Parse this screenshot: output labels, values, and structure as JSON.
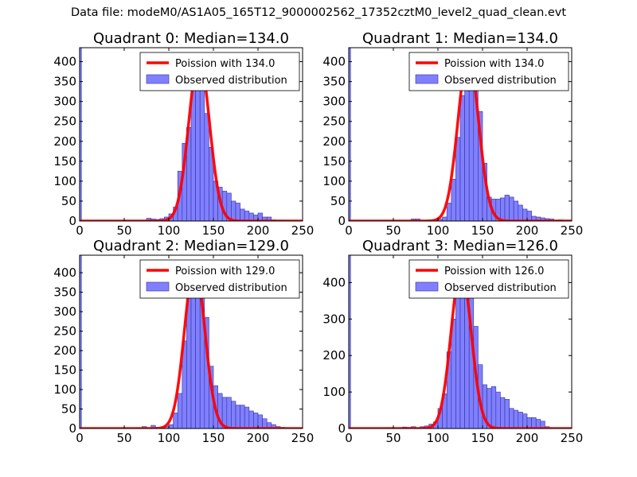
{
  "suptitle": "Data file: modeM0/AS1A05_165T12_9000002562_17352cztM0_level2_quad_clean.evt",
  "colors": {
    "bar_fill": "#8080ff",
    "bar_edge": "#3030a0",
    "poisson": "#ff0000",
    "axis": "#000000"
  },
  "chart_data": [
    {
      "type": "bar",
      "title": "Quadrant 0: Median=134.0",
      "xlim": [
        0,
        250
      ],
      "ylim": [
        0,
        435
      ],
      "xticks": [
        0,
        50,
        100,
        150,
        200,
        250
      ],
      "yticks": [
        0,
        50,
        100,
        150,
        200,
        250,
        300,
        350,
        400
      ],
      "bin_width": 5,
      "edge_bar": {
        "x": 0,
        "width": 2,
        "value": 435
      },
      "bins_start": [
        75,
        80,
        85,
        90,
        95,
        100,
        105,
        110,
        115,
        120,
        125,
        130,
        135,
        140,
        145,
        150,
        155,
        160,
        165,
        170,
        175,
        180,
        185,
        190,
        195,
        200,
        205,
        210,
        215,
        220,
        225,
        230
      ],
      "counts": [
        7,
        5,
        4,
        6,
        10,
        18,
        35,
        125,
        195,
        235,
        370,
        385,
        355,
        270,
        185,
        100,
        85,
        75,
        70,
        50,
        45,
        30,
        25,
        20,
        15,
        20,
        10,
        10,
        3,
        2,
        2,
        1
      ],
      "legend": {
        "position": "top-right",
        "line_label": "Poission with 134.0",
        "bar_label": "Observed distribution"
      },
      "poisson_mean": 134.0,
      "poisson_peak": 410
    },
    {
      "type": "bar",
      "title": "Quadrant 1: Median=134.0",
      "xlim": [
        0,
        250
      ],
      "ylim": [
        0,
        435
      ],
      "xticks": [
        0,
        50,
        100,
        150,
        200,
        250
      ],
      "yticks": [
        0,
        50,
        100,
        150,
        200,
        250,
        300,
        350,
        400
      ],
      "bin_width": 5,
      "edge_bar": {
        "x": 0,
        "width": 2,
        "value": 435
      },
      "bins_start": [
        70,
        75,
        80,
        85,
        90,
        95,
        100,
        105,
        110,
        115,
        120,
        125,
        130,
        135,
        140,
        145,
        150,
        155,
        160,
        165,
        170,
        175,
        180,
        185,
        190,
        195,
        200,
        205,
        210,
        215,
        220,
        225,
        230,
        235,
        240,
        245
      ],
      "counts": [
        5,
        5,
        2,
        2,
        2,
        3,
        5,
        10,
        45,
        105,
        210,
        315,
        400,
        405,
        355,
        275,
        145,
        60,
        55,
        55,
        58,
        65,
        60,
        50,
        40,
        30,
        25,
        12,
        10,
        8,
        6,
        5,
        2,
        3,
        1,
        1
      ],
      "legend": {
        "position": "top-right",
        "line_label": "Poission with 134.0",
        "bar_label": "Observed distribution"
      },
      "poisson_mean": 134.0,
      "poisson_peak": 415
    },
    {
      "type": "bar",
      "title": "Quadrant 2: Median=129.0",
      "xlim": [
        0,
        250
      ],
      "ylim": [
        0,
        445
      ],
      "xticks": [
        0,
        50,
        100,
        150,
        200,
        250
      ],
      "yticks": [
        0,
        50,
        100,
        150,
        200,
        250,
        300,
        350,
        400
      ],
      "bin_width": 5,
      "edge_bar": {
        "x": 0,
        "width": 2,
        "value": 445
      },
      "bins_start": [
        70,
        75,
        80,
        85,
        90,
        95,
        100,
        105,
        110,
        115,
        120,
        125,
        130,
        135,
        140,
        145,
        150,
        155,
        160,
        165,
        170,
        175,
        180,
        185,
        190,
        195,
        200,
        205,
        210,
        215,
        220,
        225,
        230
      ],
      "counts": [
        5,
        2,
        8,
        3,
        4,
        5,
        10,
        40,
        90,
        225,
        350,
        385,
        420,
        345,
        285,
        160,
        110,
        90,
        80,
        80,
        70,
        60,
        60,
        55,
        45,
        40,
        35,
        25,
        15,
        10,
        5,
        3,
        1
      ],
      "legend": {
        "position": "top-right",
        "line_label": "Poission with 129.0",
        "bar_label": "Observed distribution"
      },
      "poisson_mean": 129.0,
      "poisson_peak": 420
    },
    {
      "type": "bar",
      "title": "Quadrant 3: Median=126.0",
      "xlim": [
        0,
        250
      ],
      "ylim": [
        0,
        475
      ],
      "xticks": [
        0,
        50,
        100,
        150,
        200,
        250
      ],
      "yticks": [
        0,
        100,
        200,
        300,
        400
      ],
      "bin_width": 5,
      "edge_bar": {
        "x": 0,
        "width": 2,
        "value": 475
      },
      "bins_start": [
        60,
        65,
        70,
        75,
        80,
        85,
        90,
        95,
        100,
        105,
        110,
        115,
        120,
        125,
        130,
        135,
        140,
        145,
        150,
        155,
        160,
        165,
        170,
        175,
        180,
        185,
        190,
        195,
        200,
        205,
        210,
        215,
        220
      ],
      "counts": [
        4,
        3,
        5,
        2,
        5,
        7,
        12,
        18,
        55,
        95,
        210,
        300,
        390,
        440,
        430,
        375,
        280,
        175,
        120,
        110,
        115,
        100,
        85,
        80,
        55,
        50,
        45,
        40,
        30,
        30,
        25,
        20,
        5
      ],
      "legend": {
        "position": "top-right",
        "line_label": "Poission with 126.0",
        "bar_label": "Observed distribution"
      },
      "poisson_mean": 126.0,
      "poisson_peak": 440
    }
  ]
}
